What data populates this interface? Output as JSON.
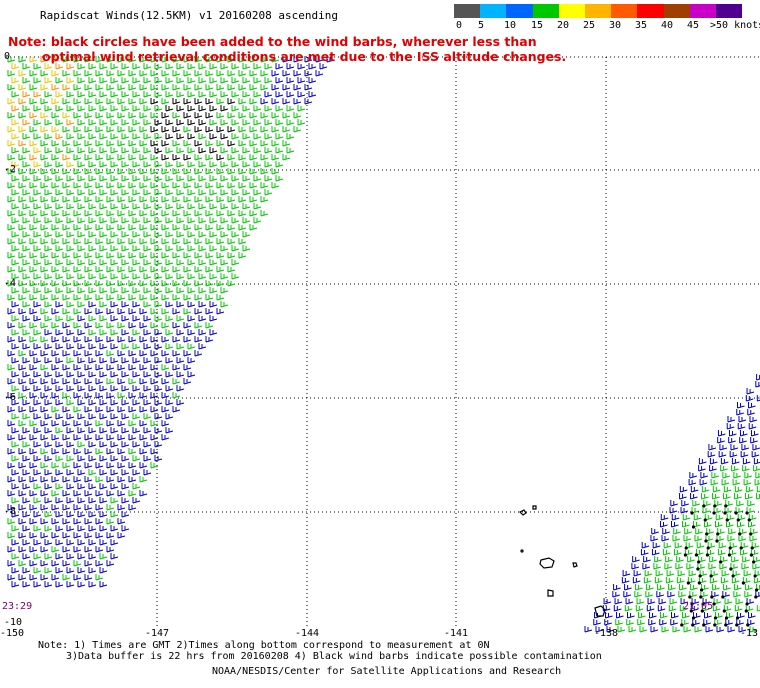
{
  "title": "Rapidscat Winds(12.5KM) v1 20160208 ascending",
  "note": {
    "line1": "Note: black circles have been added to the wind barbs, wherever less than",
    "line2": "optimal wind retrieval conditions are met due to the ISS altitude changes."
  },
  "legend": {
    "labels": [
      "0",
      "5",
      "10",
      "15",
      "20",
      "25",
      "30",
      "35",
      "40",
      "45",
      ">50 knots"
    ],
    "colors": [
      "#555555",
      "#00b4ff",
      "#0064ff",
      "#00c800",
      "#ffff00",
      "#ffb400",
      "#ff5a00",
      "#ff0000",
      "#a04000",
      "#c800c8",
      "#500090"
    ]
  },
  "axes": {
    "lon_labels": [
      "-150",
      "-147",
      "-144",
      "-141",
      "-138",
      "-13"
    ],
    "lat_labels": [
      "0",
      "-2",
      "-4",
      "-6",
      "-8",
      "-10"
    ]
  },
  "swath_times": [
    "23:29",
    "21:05"
  ],
  "footer": {
    "line1": "Note: 1) Times are GMT 2)Times along bottom correspond to measurement at 0N",
    "line2": "3)Data buffer is 22 hrs from 20160208 4) Black wind barbs indicate possible contamination",
    "line3": "NOAA/NESDIS/Center for Satellite Applications and Research"
  },
  "colors": {
    "note": "#e00000",
    "grid": "#000000",
    "barb_blue": "#0000cc",
    "barb_green": "#00c800",
    "barb_yellow": "#e8c800",
    "barb_orange": "#ff8c00",
    "barb_black": "#000000"
  }
}
